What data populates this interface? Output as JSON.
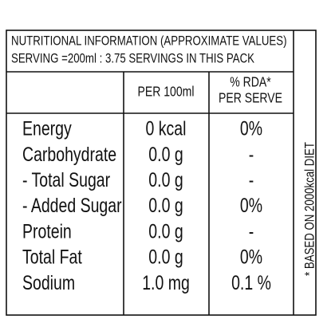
{
  "header": {
    "title": "NUTRITIONAL INFORMATION (APPROXIMATE VALUES)",
    "serving": "SERVING =200ml : 3.75 SERVINGS IN THIS PACK"
  },
  "table": {
    "columns": {
      "per_100ml": "PER 100ml",
      "rda": [
        "% RDA*",
        "PER SERVE"
      ]
    },
    "rows": [
      [
        "Energy",
        "0 kcal",
        "0%"
      ],
      [
        "Carbohydrate",
        "0.0 g",
        "-"
      ],
      [
        "- Total Sugar",
        "0.0 g",
        "-"
      ],
      [
        "- Added Sugar",
        "0.0 g",
        "0%"
      ],
      [
        "Protein",
        "0.0 g",
        "-"
      ],
      [
        "Total Fat",
        "0.0 g",
        "0%"
      ],
      [
        "Sodium",
        "1.0 mg",
        "0.1 %"
      ]
    ]
  },
  "footnote": "* BASED ON 2000kcal DIET"
}
